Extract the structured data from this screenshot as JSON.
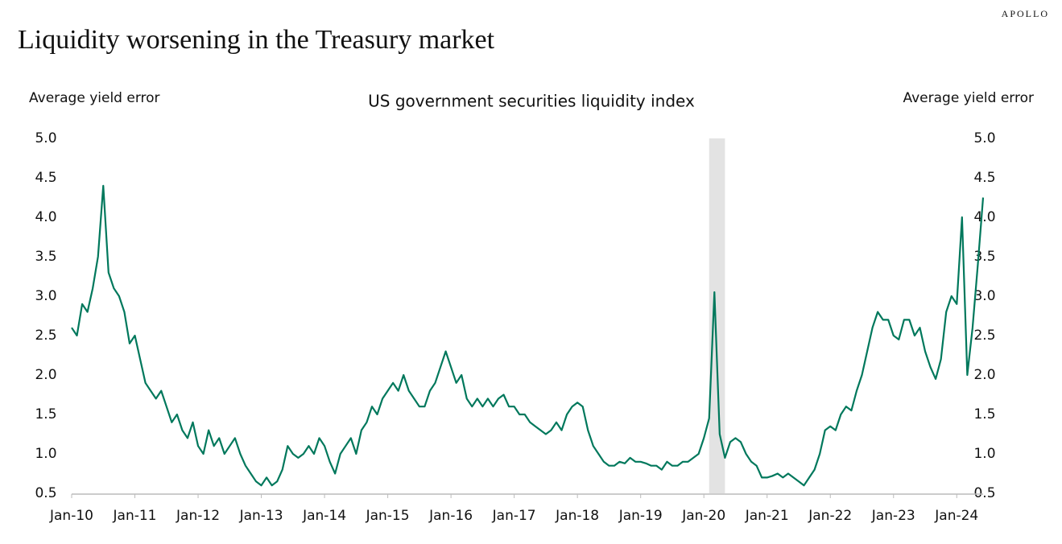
{
  "brand": "APOLLO",
  "chart_data": {
    "type": "line",
    "title": "Liquidity worsening in the Treasury market",
    "subtitle": "US government securities liquidity index",
    "ylabel": "Average yield error",
    "y2label": "Average yield error",
    "color": "#00785c",
    "shade_color": "#e3e3e3",
    "shaded_period": [
      "2020-02",
      "2020-05"
    ],
    "xlim": [
      "2010-01",
      "2024-06"
    ],
    "xticks": [
      {
        "value": "2010-01",
        "label": "Jan-10"
      },
      {
        "value": "2011-01",
        "label": "Jan-11"
      },
      {
        "value": "2012-01",
        "label": "Jan-12"
      },
      {
        "value": "2013-01",
        "label": "Jan-13"
      },
      {
        "value": "2014-01",
        "label": "Jan-14"
      },
      {
        "value": "2015-01",
        "label": "Jan-15"
      },
      {
        "value": "2016-01",
        "label": "Jan-16"
      },
      {
        "value": "2017-01",
        "label": "Jan-17"
      },
      {
        "value": "2018-01",
        "label": "Jan-18"
      },
      {
        "value": "2019-01",
        "label": "Jan-19"
      },
      {
        "value": "2020-01",
        "label": "Jan-20"
      },
      {
        "value": "2021-01",
        "label": "Jan-21"
      },
      {
        "value": "2022-01",
        "label": "Jan-22"
      },
      {
        "value": "2023-01",
        "label": "Jan-23"
      },
      {
        "value": "2024-01",
        "label": "Jan-24"
      }
    ],
    "ylim": [
      0.5,
      5
    ],
    "yticks": [
      0.5,
      {
        "value": 1,
        "label": "1.0"
      },
      1.5,
      {
        "value": 2,
        "label": "2.0"
      },
      2.5,
      {
        "value": 3,
        "label": "3.0"
      },
      3.5,
      {
        "value": 4,
        "label": "4.0"
      },
      4.5,
      {
        "value": 5,
        "label": "5.0"
      }
    ],
    "y2lim": [
      0.5,
      5
    ],
    "y2ticks": [
      0.5,
      {
        "value": 1,
        "label": "1.0"
      },
      1.5,
      {
        "value": 2,
        "label": "2.0"
      },
      2.5,
      {
        "value": 3,
        "label": "3.0"
      },
      3.5,
      {
        "value": 4,
        "label": "4.0"
      },
      4.5,
      {
        "value": 5,
        "label": "5.0"
      }
    ],
    "x": [
      "2010-01",
      "2010-02",
      "2010-03",
      "2010-04",
      "2010-05",
      "2010-06",
      "2010-07",
      "2010-08",
      "2010-09",
      "2010-10",
      "2010-11",
      "2010-12",
      "2011-01",
      "2011-02",
      "2011-03",
      "2011-04",
      "2011-05",
      "2011-06",
      "2011-07",
      "2011-08",
      "2011-09",
      "2011-10",
      "2011-11",
      "2011-12",
      "2012-01",
      "2012-02",
      "2012-03",
      "2012-04",
      "2012-05",
      "2012-06",
      "2012-07",
      "2012-08",
      "2012-09",
      "2012-10",
      "2012-11",
      "2012-12",
      "2013-01",
      "2013-02",
      "2013-03",
      "2013-04",
      "2013-05",
      "2013-06",
      "2013-07",
      "2013-08",
      "2013-09",
      "2013-10",
      "2013-11",
      "2013-12",
      "2014-01",
      "2014-02",
      "2014-03",
      "2014-04",
      "2014-05",
      "2014-06",
      "2014-07",
      "2014-08",
      "2014-09",
      "2014-10",
      "2014-11",
      "2014-12",
      "2015-01",
      "2015-02",
      "2015-03",
      "2015-04",
      "2015-05",
      "2015-06",
      "2015-07",
      "2015-08",
      "2015-09",
      "2015-10",
      "2015-11",
      "2015-12",
      "2016-01",
      "2016-02",
      "2016-03",
      "2016-04",
      "2016-05",
      "2016-06",
      "2016-07",
      "2016-08",
      "2016-09",
      "2016-10",
      "2016-11",
      "2016-12",
      "2017-01",
      "2017-02",
      "2017-03",
      "2017-04",
      "2017-05",
      "2017-06",
      "2017-07",
      "2017-08",
      "2017-09",
      "2017-10",
      "2017-11",
      "2017-12",
      "2018-01",
      "2018-02",
      "2018-03",
      "2018-04",
      "2018-05",
      "2018-06",
      "2018-07",
      "2018-08",
      "2018-09",
      "2018-10",
      "2018-11",
      "2018-12",
      "2019-01",
      "2019-02",
      "2019-03",
      "2019-04",
      "2019-05",
      "2019-06",
      "2019-07",
      "2019-08",
      "2019-09",
      "2019-10",
      "2019-11",
      "2019-12",
      "2020-01",
      "2020-02",
      "2020-03",
      "2020-04",
      "2020-05",
      "2020-06",
      "2020-07",
      "2020-08",
      "2020-09",
      "2020-10",
      "2020-11",
      "2020-12",
      "2021-01",
      "2021-02",
      "2021-03",
      "2021-04",
      "2021-05",
      "2021-06",
      "2021-07",
      "2021-08",
      "2021-09",
      "2021-10",
      "2021-11",
      "2021-12",
      "2022-01",
      "2022-02",
      "2022-03",
      "2022-04",
      "2022-05",
      "2022-06",
      "2022-07",
      "2022-08",
      "2022-09",
      "2022-10",
      "2022-11",
      "2022-12",
      "2023-01",
      "2023-02",
      "2023-03",
      "2023-04",
      "2023-05",
      "2023-06",
      "2023-07",
      "2023-08",
      "2023-09",
      "2023-10",
      "2023-11",
      "2023-12",
      "2024-01",
      "2024-02",
      "2024-03",
      "2024-04",
      "2024-05",
      "2024-06"
    ],
    "values": [
      2.6,
      2.5,
      2.9,
      2.8,
      3.1,
      3.5,
      4.4,
      3.3,
      3.1,
      3.0,
      2.8,
      2.4,
      2.5,
      2.2,
      1.9,
      1.8,
      1.7,
      1.8,
      1.6,
      1.4,
      1.5,
      1.3,
      1.2,
      1.4,
      1.1,
      1.0,
      1.3,
      1.1,
      1.2,
      1.0,
      1.1,
      1.2,
      1.0,
      0.85,
      0.75,
      0.65,
      0.6,
      0.7,
      0.6,
      0.65,
      0.8,
      1.1,
      1.0,
      0.95,
      1.0,
      1.1,
      1.0,
      1.2,
      1.1,
      0.9,
      0.75,
      1.0,
      1.1,
      1.2,
      1.0,
      1.3,
      1.4,
      1.6,
      1.5,
      1.7,
      1.8,
      1.9,
      1.8,
      2.0,
      1.8,
      1.7,
      1.6,
      1.6,
      1.8,
      1.9,
      2.1,
      2.3,
      2.1,
      1.9,
      2.0,
      1.7,
      1.6,
      1.7,
      1.6,
      1.7,
      1.6,
      1.7,
      1.75,
      1.6,
      1.6,
      1.5,
      1.5,
      1.4,
      1.35,
      1.3,
      1.25,
      1.3,
      1.4,
      1.3,
      1.5,
      1.6,
      1.65,
      1.6,
      1.3,
      1.1,
      1.0,
      0.9,
      0.85,
      0.85,
      0.9,
      0.88,
      0.95,
      0.9,
      0.9,
      0.88,
      0.85,
      0.85,
      0.8,
      0.9,
      0.85,
      0.85,
      0.9,
      0.9,
      0.95,
      1.0,
      1.2,
      1.45,
      3.05,
      1.25,
      0.95,
      1.15,
      1.2,
      1.15,
      1.0,
      0.9,
      0.85,
      0.7,
      0.7,
      0.72,
      0.75,
      0.7,
      0.75,
      0.7,
      0.65,
      0.6,
      0.7,
      0.8,
      1.0,
      1.3,
      1.35,
      1.3,
      1.5,
      1.6,
      1.55,
      1.8,
      2.0,
      2.3,
      2.6,
      2.8,
      2.7,
      2.7,
      2.5,
      2.45,
      2.7,
      2.7,
      2.5,
      2.6,
      2.3,
      2.1,
      1.95,
      2.2,
      2.8,
      3.0,
      2.9,
      4.0,
      2.0,
      2.6,
      3.4,
      4.25
    ]
  }
}
